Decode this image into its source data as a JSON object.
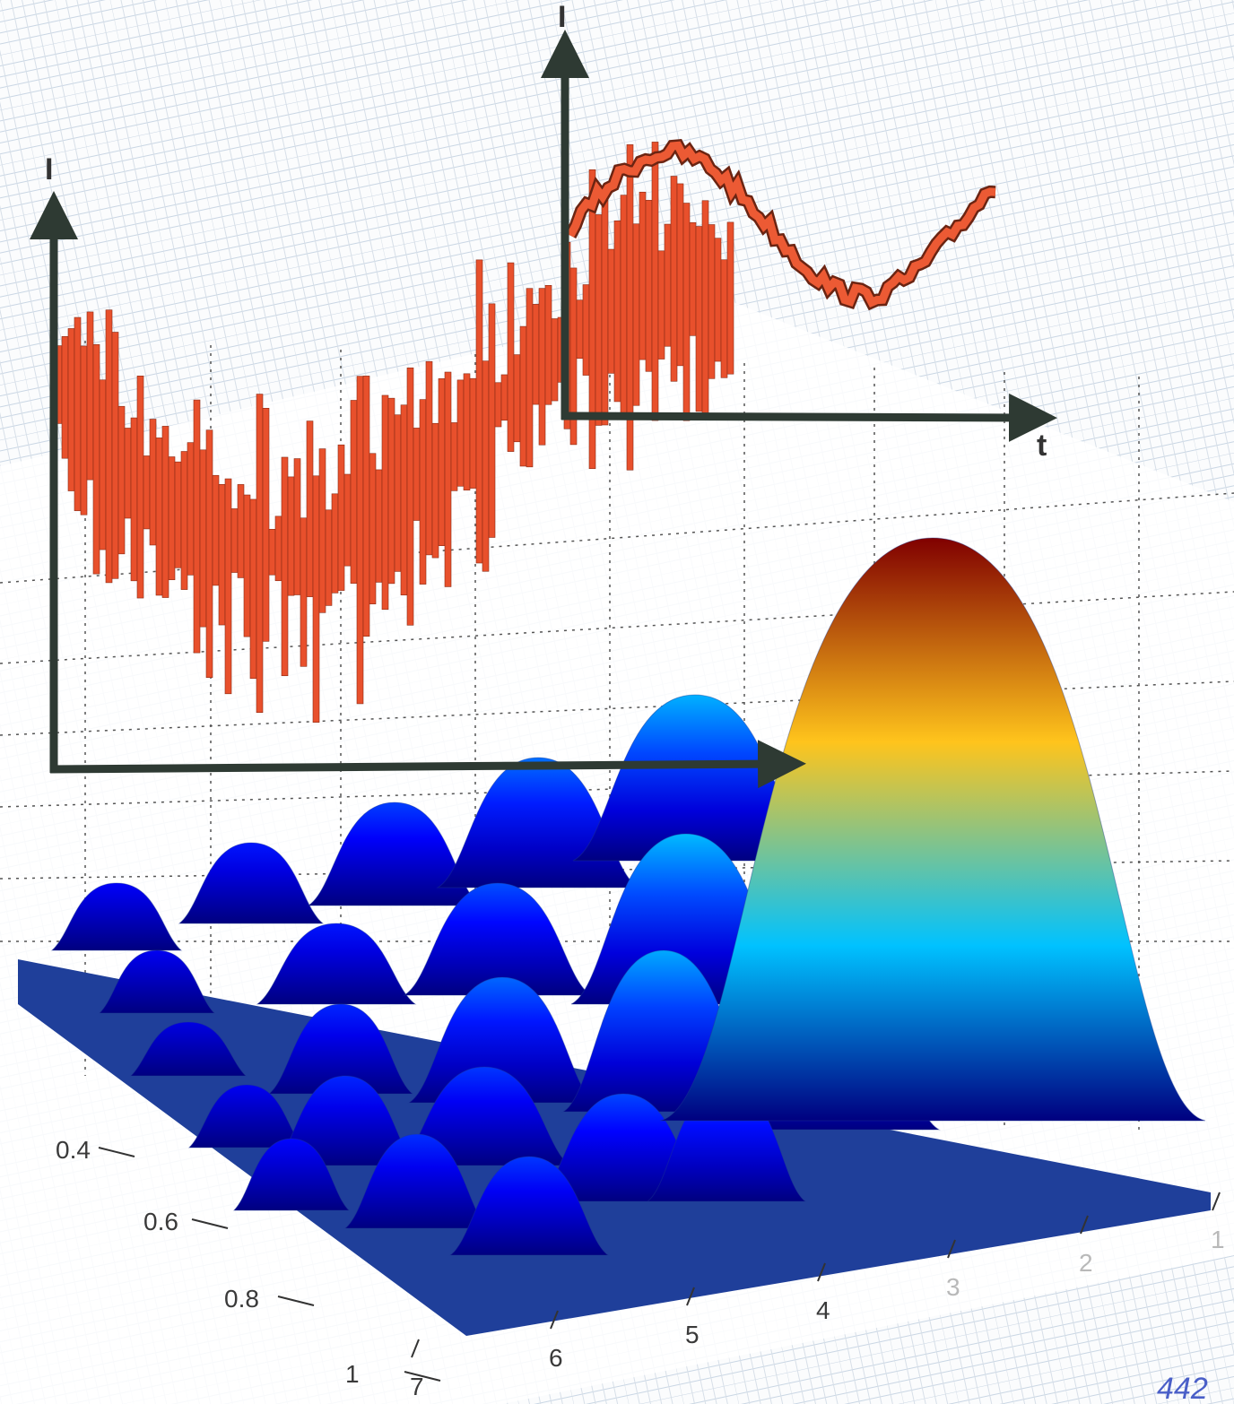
{
  "left_plot": {
    "y_axis_label": "I"
  },
  "right_plot": {
    "y_axis_label": "I",
    "x_axis_label": "t"
  },
  "surface": {
    "depth_ticks": [
      0.4,
      0.6,
      0.8,
      1
    ],
    "length_ticks": [
      7,
      6,
      5,
      4,
      3,
      2,
      1
    ]
  },
  "handwritten_note": "442"
}
